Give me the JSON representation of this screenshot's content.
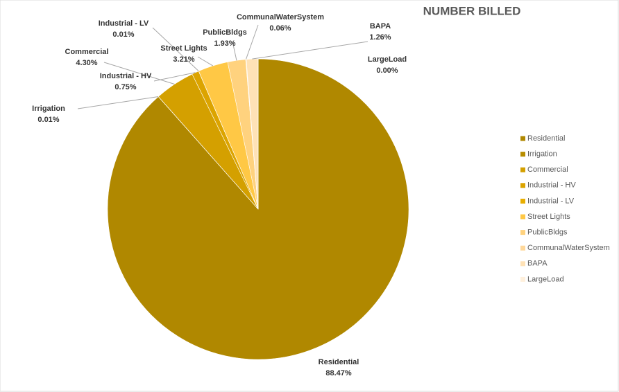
{
  "chart_data": {
    "type": "pie",
    "title": "NUMBER BILLED",
    "categories": [
      "Residential",
      "Irrigation",
      "Commercial",
      "Industrial  - HV",
      "Industrial  - LV",
      "Street Lights",
      "PublicBldgs",
      "CommunalWaterSystem",
      "BAPA",
      "LargeLoad"
    ],
    "values": [
      88.47,
      0.01,
      4.3,
      0.75,
      0.01,
      3.21,
      1.93,
      0.06,
      1.26,
      0.0
    ],
    "value_labels": [
      "88.47%",
      "0.01%",
      "4.30%",
      "0.75%",
      "0.01%",
      "3.21%",
      "1.93%",
      "0.06%",
      "1.26%",
      "0.00%"
    ],
    "colors": [
      "#b08800",
      "#b88e00",
      "#d4a000",
      "#dca400",
      "#e8ae00",
      "#ffc845",
      "#ffd27e",
      "#ffd89a",
      "#ffe2b6",
      "#fff0dc"
    ],
    "legend": "right"
  }
}
